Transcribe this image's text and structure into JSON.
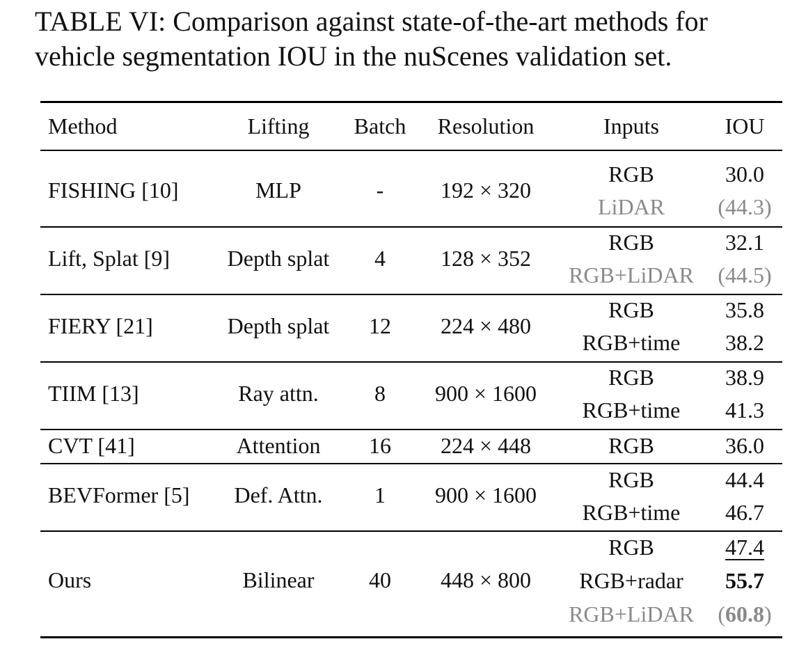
{
  "caption": {
    "line1": "TABLE VI: Comparison against state-of-the-art methods for",
    "line2": "vehicle segmentation IOU in the nuScenes validation set."
  },
  "table": {
    "headers": {
      "method": "Method",
      "lifting": "Lifting",
      "batch": "Batch",
      "resolution": "Resolution",
      "inputs": "Inputs",
      "iou": "IOU"
    },
    "rows": [
      {
        "method": "FISHING [10]",
        "lifting": "MLP",
        "batch": "-",
        "resolution": "192 × 320",
        "entries": [
          {
            "input": "RGB",
            "iou": "30.0"
          },
          {
            "input": "LiDAR",
            "iou": "(44.3)"
          }
        ]
      },
      {
        "method": "Lift, Splat [9]",
        "lifting": "Depth splat",
        "batch": "4",
        "resolution": "128 × 352",
        "entries": [
          {
            "input": "RGB",
            "iou": "32.1"
          },
          {
            "input": "RGB+LiDAR",
            "iou": "(44.5)"
          }
        ]
      },
      {
        "method": "FIERY [21]",
        "lifting": "Depth splat",
        "batch": "12",
        "resolution": "224 × 480",
        "entries": [
          {
            "input": "RGB",
            "iou": "35.8"
          },
          {
            "input": "RGB+time",
            "iou": "38.2"
          }
        ]
      },
      {
        "method": "TIIM [13]",
        "lifting": "Ray attn.",
        "batch": "8",
        "resolution": "900 × 1600",
        "entries": [
          {
            "input": "RGB",
            "iou": "38.9"
          },
          {
            "input": "RGB+time",
            "iou": "41.3"
          }
        ]
      },
      {
        "method": "CVT [41]",
        "lifting": "Attention",
        "batch": "16",
        "resolution": "224 × 448",
        "entries": [
          {
            "input": "RGB",
            "iou": "36.0"
          }
        ]
      },
      {
        "method": "BEVFormer [5]",
        "lifting": "Def. Attn.",
        "batch": "1",
        "resolution": "900 × 1600",
        "entries": [
          {
            "input": "RGB",
            "iou": "44.4"
          },
          {
            "input": "RGB+time",
            "iou": "46.7"
          }
        ]
      },
      {
        "method": "Ours",
        "lifting": "Bilinear",
        "batch": "40",
        "resolution": "448 × 800",
        "entries": [
          {
            "input": "RGB",
            "iou": "47.4"
          },
          {
            "input": "RGB+radar",
            "iou": "55.7"
          },
          {
            "input": "RGB+LiDAR",
            "iou_open": "(",
            "iou_value": "60.8",
            "iou_close": ")"
          }
        ]
      }
    ]
  }
}
